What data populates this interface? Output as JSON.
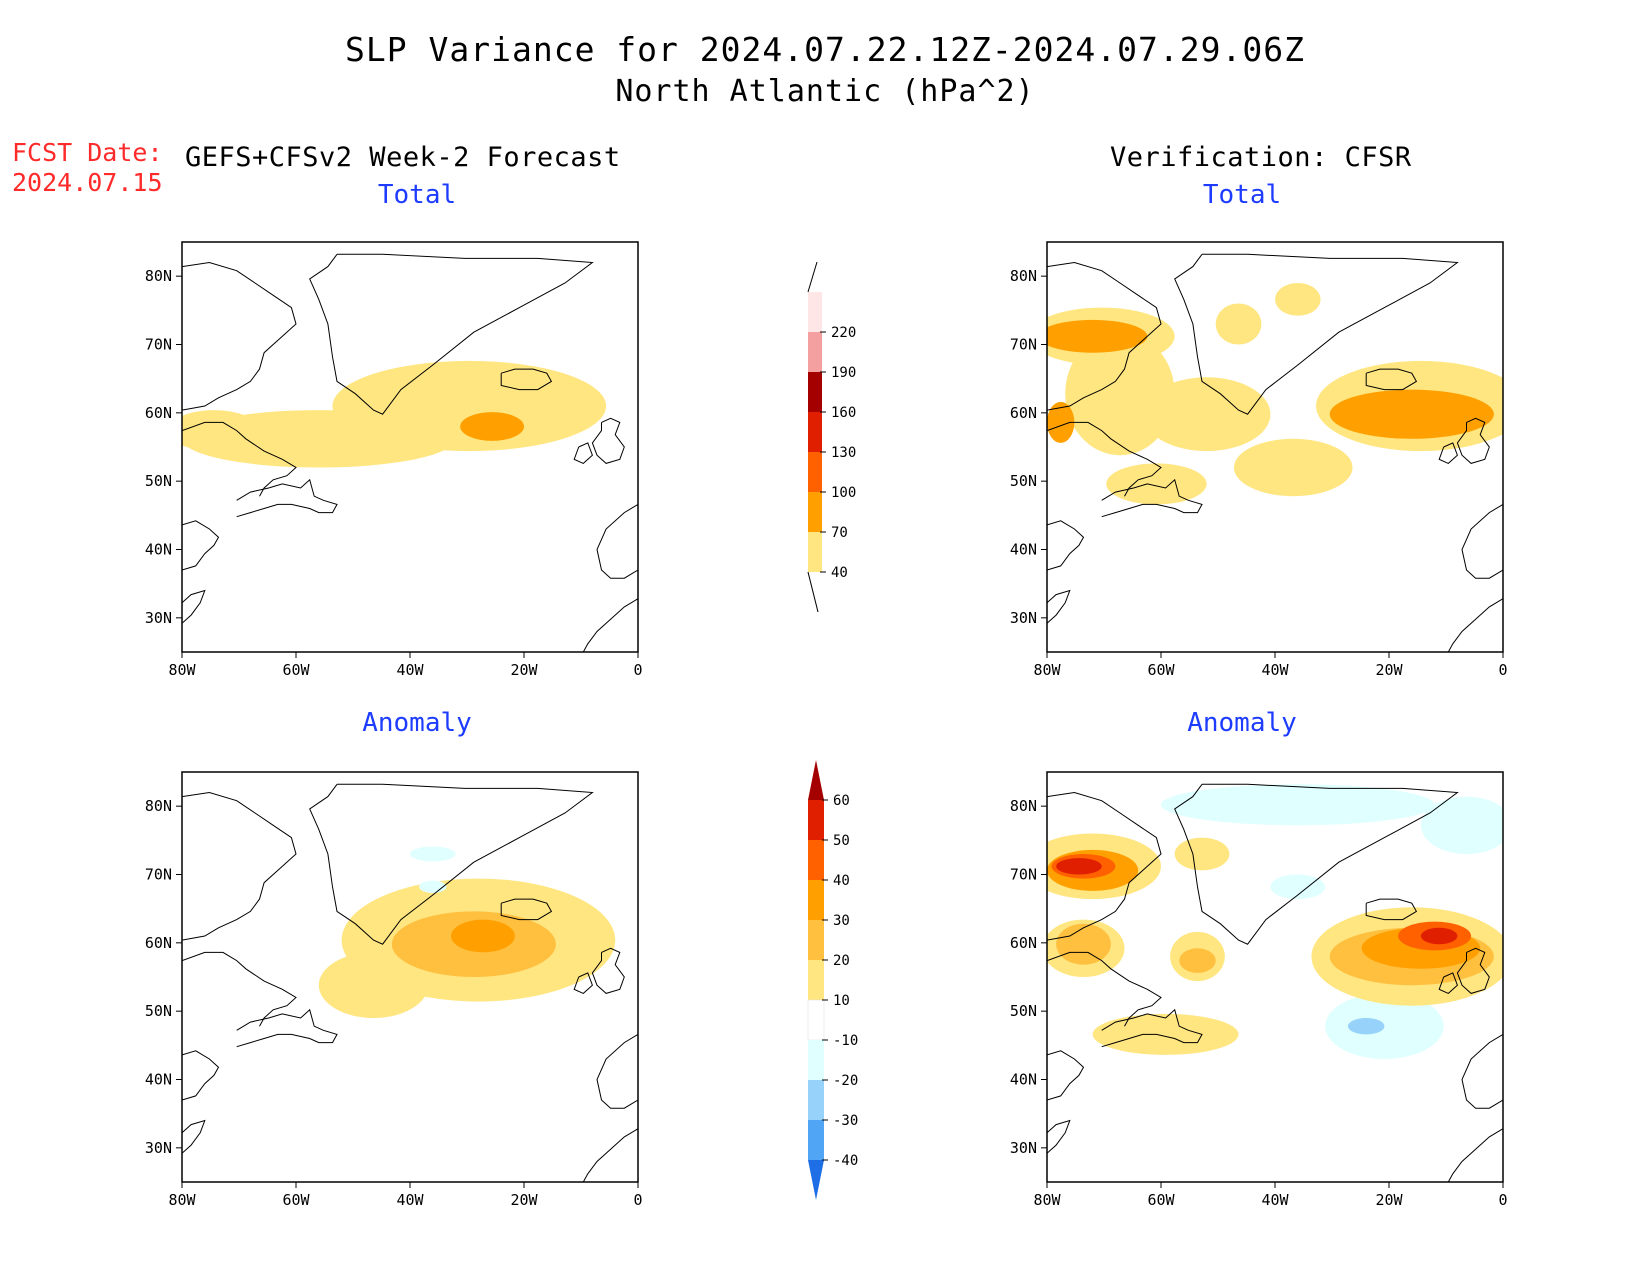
{
  "title": {
    "line1": "SLP Variance for 2024.07.22.12Z-2024.07.29.06Z",
    "line2": "North Atlantic (hPa^2)"
  },
  "forecast_date": {
    "label": "FCST Date:",
    "value": "2024.07.15"
  },
  "columns": {
    "forecast": "GEFS+CFSv2 Week-2 Forecast",
    "verification": "Verification: CFSR"
  },
  "panels": [
    {
      "id": "fcst-total",
      "title": "Total"
    },
    {
      "id": "ver-total",
      "title": "Total"
    },
    {
      "id": "fcst-anom",
      "title": "Anomaly"
    },
    {
      "id": "ver-anom",
      "title": "Anomaly"
    }
  ],
  "axes": {
    "lat_labels": [
      "80N",
      "70N",
      "60N",
      "50N",
      "40N",
      "30N"
    ],
    "lat_values": [
      80,
      70,
      60,
      50,
      40,
      30
    ],
    "lon_labels": [
      "80W",
      "60W",
      "40W",
      "20W",
      "0"
    ],
    "lon_values": [
      -80,
      -60,
      -40,
      -20,
      0
    ],
    "lon_range": [
      -80,
      0
    ],
    "lat_range": [
      25,
      85
    ]
  },
  "colorbars": {
    "total": {
      "labels": [
        "40",
        "70",
        "100",
        "130",
        "160",
        "190",
        "220"
      ],
      "colors": [
        "#ffe680",
        "#ffa000",
        "#ff6000",
        "#e01e00",
        "#a50000",
        "#f4a0a0",
        "#ffe6e6"
      ]
    },
    "anomaly": {
      "labels": [
        "60",
        "50",
        "40",
        "30",
        "20",
        "10",
        "-10",
        "-20",
        "-30",
        "-40"
      ],
      "colors_top_to_bottom": [
        "#a50000",
        "#e01e00",
        "#ff6000",
        "#ffa000",
        "#ffc040",
        "#ffe680",
        "#ffffff",
        "#e0ffff",
        "#96d2fa",
        "#50a5f5",
        "#1e6ee6"
      ]
    }
  },
  "colors": {
    "fcst_date": "#ff2a2a",
    "panel_title": "#1e3cff"
  }
}
